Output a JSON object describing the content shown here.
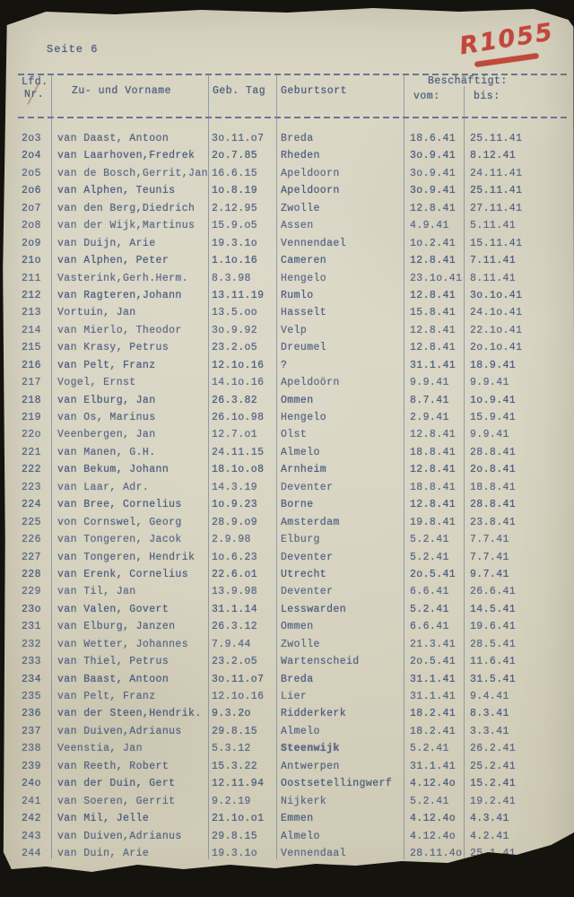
{
  "page": {
    "label": "Seite 6",
    "stamp": "R1055"
  },
  "colors": {
    "ink_blue": "#4c5e80",
    "stamp_red": "#c2463c",
    "paper": "#d7d3c0"
  },
  "table": {
    "headers": {
      "lfd": "Lfd.",
      "nr": "Nr.",
      "name": "Zu- und Vorname",
      "geb": "Geb. Tag",
      "ort": "Geburtsort",
      "beschaeftigt": "Beschäftigt:",
      "vom": "vom:",
      "bis": "bis:"
    },
    "rows": [
      {
        "nr": "2o3",
        "name": "van Daast, Antoon",
        "geb": "3o.11.o7",
        "ort": "Breda",
        "vom": "18.6.41",
        "bis": "25.11.41"
      },
      {
        "nr": "2o4",
        "name": "van Laarhoven,Fredrek",
        "geb": "2o.7.85",
        "ort": "Rheden",
        "vom": "3o.9.41",
        "bis": "8.12.41"
      },
      {
        "nr": "2o5",
        "name": "van de Bosch,Gerrit,Jan",
        "geb": "16.6.15",
        "ort": "Apeldoorn",
        "vom": "3o.9.41",
        "bis": "24.11.41"
      },
      {
        "nr": "2o6",
        "name": "van Alphen, Teunis",
        "geb": "1o.8.19",
        "ort": "Apeldoorn",
        "vom": "3o.9.41",
        "bis": "25.11.41"
      },
      {
        "nr": "2o7",
        "name": "van den Berg,Diedrich",
        "geb": "2.12.95",
        "ort": "Zwolle",
        "vom": "12.8.41",
        "bis": "27.11.41"
      },
      {
        "nr": "2o8",
        "name": "van der Wijk,Martinus",
        "geb": "15.9.o5",
        "ort": "Assen",
        "vom": "4.9.41",
        "bis": "5.11.41"
      },
      {
        "nr": "2o9",
        "name": "van Duijn, Arie",
        "geb": "19.3.1o",
        "ort": "Vennendael",
        "vom": "1o.2.41",
        "bis": "15.11.41"
      },
      {
        "nr": "21o",
        "name": "van Alphen, Peter",
        "geb": "1.1o.16",
        "ort": "Cameren",
        "vom": "12.8.41",
        "bis": "7.11.41"
      },
      {
        "nr": "211",
        "name": "Vasterink,Gerh.Herm.",
        "geb": "8.3.98",
        "ort": "Hengelo",
        "vom": "23.1o.41",
        "bis": "8.11.41"
      },
      {
        "nr": "212",
        "name": "van Ragteren,Johann",
        "geb": "13.11.19",
        "ort": "Rumlo",
        "vom": "12.8.41",
        "bis": "3o.1o.41"
      },
      {
        "nr": "213",
        "name": "Vortuin, Jan",
        "geb": "13.5.oo",
        "ort": "Hasselt",
        "vom": "15.8.41",
        "bis": "24.1o.41"
      },
      {
        "nr": "214",
        "name": "van Mierlo, Theodor",
        "geb": "3o.9.92",
        "ort": "Velp",
        "vom": "12.8.41",
        "bis": "22.1o.41"
      },
      {
        "nr": "215",
        "name": "van Krasy, Petrus",
        "geb": "23.2.o5",
        "ort": "Dreumel",
        "vom": "12.8.41",
        "bis": "2o.1o.41"
      },
      {
        "nr": "216",
        "name": "van Pelt, Franz",
        "geb": "12.1o.16",
        "ort": "?",
        "vom": "31.1.41",
        "bis": "18.9.41"
      },
      {
        "nr": "217",
        "name": "Vogel, Ernst",
        "geb": "14.1o.16",
        "ort": "Apeldoörn",
        "vom": "9.9.41",
        "bis": "9.9.41"
      },
      {
        "nr": "218",
        "name": "van Elburg, Jan",
        "geb": "26.3.82",
        "ort": "Ommen",
        "vom": "8.7.41",
        "bis": "1o.9.41"
      },
      {
        "nr": "219",
        "name": "van Os, Marinus",
        "geb": "26.1o.98",
        "ort": "Hengelo",
        "vom": "2.9.41",
        "bis": "15.9.41"
      },
      {
        "nr": "22o",
        "name": "Veenbergen, Jan",
        "geb": "12.7.o1",
        "ort": "Olst",
        "vom": "12.8.41",
        "bis": "9.9.41"
      },
      {
        "nr": "221",
        "name": "van Manen, G.H.",
        "geb": "24.11.15",
        "ort": "Almelo",
        "vom": "18.8.41",
        "bis": "28.8.41"
      },
      {
        "nr": "222",
        "name": "van Bekum, Johann",
        "geb": "18.1o.o8",
        "ort": "Arnheim",
        "vom": "12.8.41",
        "bis": "2o.8.41"
      },
      {
        "nr": "223",
        "name": "van Laar, Adr.",
        "geb": "14.3.19",
        "ort": "Deventer",
        "vom": "18.8.41",
        "bis": "18.8.41"
      },
      {
        "nr": "224",
        "name": "van Bree, Cornelius",
        "geb": "1o.9.23",
        "ort": "Borne",
        "vom": "12.8.41",
        "bis": "28.8.41"
      },
      {
        "nr": "225",
        "name": "von Cornswel, Georg",
        "geb": "28.9.o9",
        "ort": "Amsterdam",
        "vom": "19.8.41",
        "bis": "23.8.41"
      },
      {
        "nr": "226",
        "name": "van Tongeren, Jacok",
        "geb": "2.9.98",
        "ort": "Elburg",
        "vom": "5.2.41",
        "bis": "7.7.41"
      },
      {
        "nr": "227",
        "name": "van Tongeren, Hendrik",
        "geb": "1o.6.23",
        "ort": "Deventer",
        "vom": "5.2.41",
        "bis": "7.7.41"
      },
      {
        "nr": "228",
        "name": "van Erenk, Cornelius",
        "geb": "22.6.o1",
        "ort": "Utrecht",
        "vom": "2o.5.41",
        "bis": "9.7.41"
      },
      {
        "nr": "229",
        "name": "van Til, Jan",
        "geb": "13.9.98",
        "ort": "Deventer",
        "vom": "6.6.41",
        "bis": "26.6.41"
      },
      {
        "nr": "23o",
        "name": "van Valen, Govert",
        "geb": "31.1.14",
        "ort": "Lesswarden",
        "vom": "5.2.41",
        "bis": "14.5.41"
      },
      {
        "nr": "231",
        "name": "van Elburg, Janzen",
        "geb": "26.3.12",
        "ort": "Ommen",
        "vom": "6.6.41",
        "bis": "19.6.41"
      },
      {
        "nr": "232",
        "name": "van Wetter, Johannes",
        "geb": "7.9.44",
        "ort": "Zwolle",
        "vom": "21.3.41",
        "bis": "28.5.41"
      },
      {
        "nr": "233",
        "name": "van Thiel, Petrus",
        "geb": "23.2.o5",
        "ort": "Wartenscheid",
        "vom": "2o.5.41",
        "bis": "11.6.41"
      },
      {
        "nr": "234",
        "name": "van Baast, Antoon",
        "geb": "3o.11.o7",
        "ort": "Breda",
        "vom": "31.1.41",
        "bis": "31.5.41"
      },
      {
        "nr": "235",
        "name": "van Pelt, Franz",
        "geb": "12.1o.16",
        "ort": "Lier",
        "vom": "31.1.41",
        "bis": "9.4.41"
      },
      {
        "nr": "236",
        "name": "van der Steen,Hendrik.",
        "geb": "9.3.2o",
        "ort": "Ridderkerk",
        "vom": "18.2.41",
        "bis": "8.3.41"
      },
      {
        "nr": "237",
        "name": "van Duiven,Adrianus",
        "geb": "29.8.15",
        "ort": "Almelo",
        "vom": "18.2.41",
        "bis": "3.3.41"
      },
      {
        "nr": "238",
        "name": "Veenstia, Jan",
        "geb": "5.3.12",
        "ort": "Steenwijk",
        "ort_bold": true,
        "vom": "5.2.41",
        "bis": "26.2.41"
      },
      {
        "nr": "239",
        "name": "van Reeth, Robert",
        "geb": "15.3.22",
        "ort": "Antwerpen",
        "vom": "31.1.41",
        "bis": "25.2.41"
      },
      {
        "nr": "24o",
        "name": "van der Duin, Gert",
        "geb": "12.11.94",
        "ort": "Oostsetellingwerf",
        "vom": "4.12.4o",
        "bis": "15.2.41"
      },
      {
        "nr": "241",
        "name": "van Soeren, Gerrit",
        "geb": "9.2.19",
        "ort": "Nijkerk",
        "vom": "5.2.41",
        "bis": "19.2.41"
      },
      {
        "nr": "242",
        "name": "Van Mil, Jelle",
        "geb": "21.1o.o1",
        "ort": "Emmen",
        "vom": "4.12.4o",
        "bis": "4.3.41"
      },
      {
        "nr": "243",
        "name": "van Duiven,Adrianus",
        "geb": "29.8.15",
        "ort": "Almelo",
        "vom": "4.12.4o",
        "bis": "4.2.41"
      },
      {
        "nr": "244",
        "name": "van Duin, Arie",
        "geb": "19.3.1o",
        "ort": "Vennendaal",
        "vom": "28.11.4o",
        "bis": "25.1.41"
      }
    ]
  }
}
